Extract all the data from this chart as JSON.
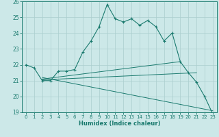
{
  "xlabel": "Humidex (Indice chaleur)",
  "bg_color": "#cce8e8",
  "line_color": "#1a7a6e",
  "grid_color": "#aacece",
  "xlim": [
    -0.5,
    23.5
  ],
  "ylim": [
    19,
    26
  ],
  "xticks": [
    0,
    1,
    2,
    3,
    4,
    5,
    6,
    7,
    8,
    9,
    10,
    11,
    12,
    13,
    14,
    15,
    16,
    17,
    18,
    19,
    20,
    21,
    22,
    23
  ],
  "yticks": [
    19,
    20,
    21,
    22,
    23,
    24,
    25,
    26
  ],
  "main_x": [
    0,
    1,
    2,
    3,
    4,
    5,
    6,
    7,
    8,
    9,
    10,
    11,
    12,
    13,
    14,
    15,
    16,
    17,
    18,
    19,
    20,
    21,
    22,
    23
  ],
  "main_y": [
    22.0,
    21.8,
    21.0,
    21.0,
    21.6,
    21.6,
    21.7,
    22.8,
    23.5,
    24.4,
    25.8,
    24.9,
    24.7,
    24.9,
    24.5,
    24.8,
    24.4,
    23.5,
    24.0,
    22.2,
    21.5,
    20.9,
    20.0,
    18.9
  ],
  "line1_x": [
    2,
    19
  ],
  "line1_y": [
    21.1,
    22.2
  ],
  "line2_x": [
    2,
    21
  ],
  "line2_y": [
    21.05,
    21.5
  ],
  "line3_x": [
    2,
    23
  ],
  "line3_y": [
    21.2,
    19.1
  ]
}
